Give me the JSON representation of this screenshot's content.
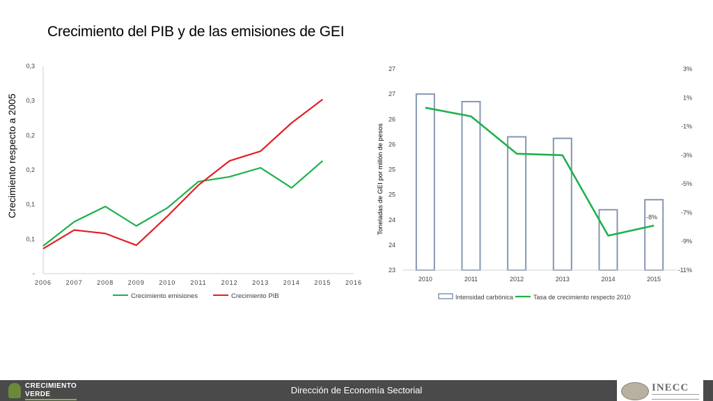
{
  "title": "Crecimiento del PIB y de las emisiones de GEI",
  "footer": {
    "text": "Dirección de Economía Sectorial",
    "logo_left_line1": "CRECIMIENTO",
    "logo_left_line2": "VERDE",
    "logo_right_name": "INECC"
  },
  "chart_data": [
    {
      "type": "line",
      "title": "",
      "ylabel": "Crecimiento respecto a 2005",
      "xlabel": "",
      "x": [
        2006,
        2007,
        2008,
        2009,
        2010,
        2011,
        2012,
        2013,
        2014,
        2015
      ],
      "x_ticks": [
        "2006",
        "2007",
        "2008",
        "2009",
        "2010",
        "2011",
        "2012",
        "2013",
        "2014",
        "2015",
        "2016"
      ],
      "y_ticks": [
        "-",
        "0,1",
        "0,1",
        "0,2",
        "0,2",
        "0,3",
        "0,3"
      ],
      "ylim": [
        0,
        0.3
      ],
      "series": [
        {
          "name": "Crecimiento emisiones",
          "color": "#1db14b",
          "values": [
            0.04,
            0.075,
            0.097,
            0.069,
            0.095,
            0.133,
            0.14,
            0.153,
            0.124,
            0.163
          ]
        },
        {
          "name": "Crecimiento PIB",
          "color": "#e31e24",
          "values": [
            0.036,
            0.063,
            0.058,
            0.041,
            0.083,
            0.128,
            0.163,
            0.177,
            0.218,
            0.252
          ]
        }
      ],
      "legend": "bottom",
      "grid": false
    },
    {
      "type": "bar",
      "title": "",
      "categories": [
        "2010",
        "2011",
        "2012",
        "2013",
        "2014",
        "2015"
      ],
      "ylabel": "Toneladas de GEI por millón de pesos",
      "y_left_ticks": [
        "23",
        "24",
        "24",
        "25",
        "25",
        "26",
        "26",
        "27",
        "27"
      ],
      "ylim_left": [
        23,
        27
      ],
      "y_right_ticks": [
        "-11%",
        "-9%",
        "-7%",
        "-5%",
        "-3%",
        "-1%",
        "1%",
        "3%"
      ],
      "ylim_right": [
        -11,
        3
      ],
      "series": [
        {
          "name": "Intensidad carbónica",
          "type": "bar",
          "axis": "left",
          "color": "#8496b0",
          "values": [
            26.5,
            26.35,
            25.65,
            25.62,
            24.2,
            24.4
          ]
        },
        {
          "name": "Tasa de crecimiento respecto 2010",
          "type": "line",
          "axis": "right",
          "color": "#1db14b",
          "values": [
            0.3,
            -0.3,
            -2.9,
            -3.0,
            -8.6,
            -7.9
          ]
        }
      ],
      "annotations": [
        {
          "category": "2015",
          "text": "-8%"
        }
      ],
      "legend": "bottom",
      "grid": false
    }
  ]
}
